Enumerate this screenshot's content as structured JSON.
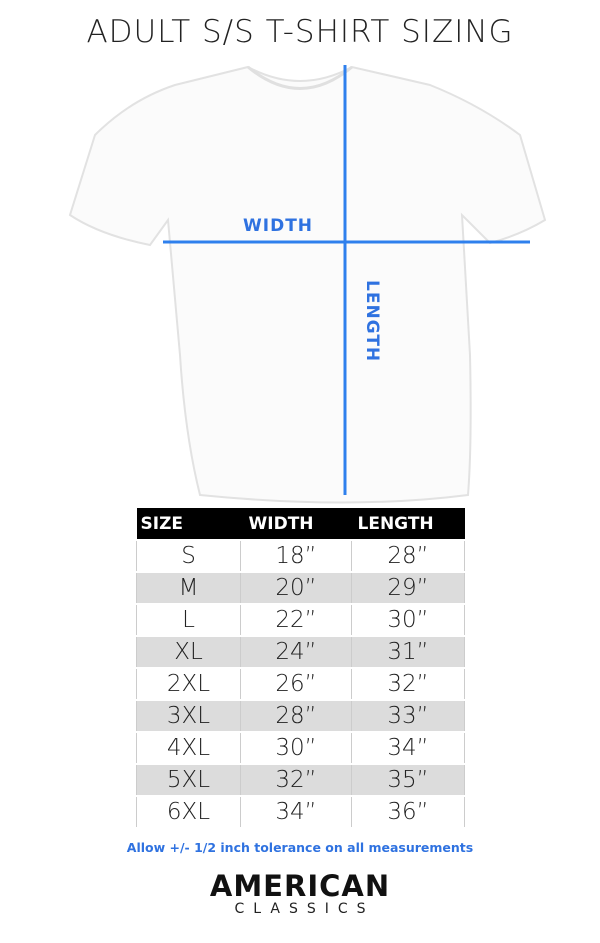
{
  "title": "ADULT S/S T-SHIRT SIZING",
  "diagram": {
    "width_label": "WIDTH",
    "length_label": "LENGTH",
    "line_color": "#2f80ed"
  },
  "table": {
    "headers": [
      "SIZE",
      "WIDTH",
      "LENGTH"
    ],
    "rows": [
      [
        "S",
        "18”",
        "28”"
      ],
      [
        "M",
        "20”",
        "29”"
      ],
      [
        "L",
        "22”",
        "30”"
      ],
      [
        "XL",
        "24”",
        "31”"
      ],
      [
        "2XL",
        "26”",
        "32”"
      ],
      [
        "3XL",
        "28”",
        "33”"
      ],
      [
        "4XL",
        "30”",
        "34”"
      ],
      [
        "5XL",
        "32”",
        "35”"
      ],
      [
        "6XL",
        "34”",
        "36”"
      ]
    ]
  },
  "note": "Allow +/- 1/2 inch tolerance on all measurements",
  "brand": {
    "main": "AMERICAN",
    "sub": "CLASSICS"
  }
}
